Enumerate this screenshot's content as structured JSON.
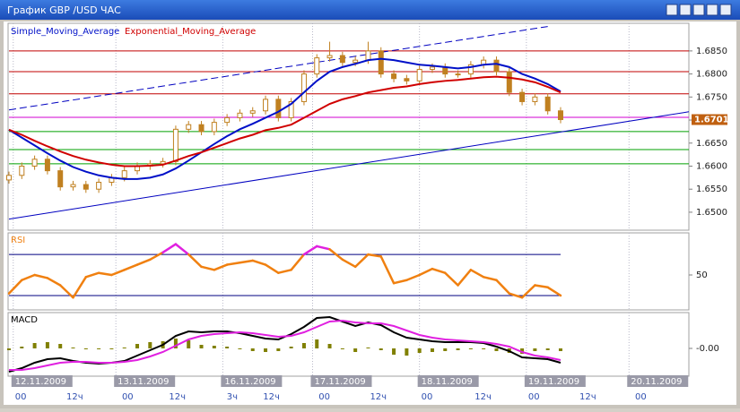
{
  "window": {
    "title": "График GBP /USD  ЧАС"
  },
  "time_axis": {
    "xlim": [
      0,
      159
    ],
    "dates": [
      {
        "value": 1,
        "label": "12.11.2009"
      },
      {
        "value": 25,
        "label": "13.11.2009"
      },
      {
        "value": 50,
        "label": "16.11.2009"
      },
      {
        "value": 71,
        "label": "17.11.2009"
      },
      {
        "value": 96,
        "label": "18.11.2009"
      },
      {
        "value": 121,
        "label": "19.11.2009"
      },
      {
        "value": 145,
        "label": "20.11.2009"
      }
    ],
    "hours": [
      {
        "value": 1,
        "label": "00"
      },
      {
        "value": 13,
        "label": "12ч"
      },
      {
        "value": 26,
        "label": "00"
      },
      {
        "value": 37,
        "label": "12ч"
      },
      {
        "value": 50.5,
        "label": "3ч"
      },
      {
        "value": 59,
        "label": "12ч"
      },
      {
        "value": 72,
        "label": "00"
      },
      {
        "value": 84,
        "label": "12ч"
      },
      {
        "value": 96,
        "label": "00"
      },
      {
        "value": 108.5,
        "label": "12ч"
      },
      {
        "value": 121,
        "label": "00"
      },
      {
        "value": 133,
        "label": "12ч"
      },
      {
        "value": 146,
        "label": "00"
      }
    ]
  },
  "chart_data": [
    {
      "type": "candlestick",
      "x": [
        0,
        3,
        6,
        9,
        12,
        15,
        18,
        21,
        24,
        27,
        30,
        33,
        36,
        39,
        42,
        45,
        48,
        51,
        54,
        57,
        60,
        63,
        66,
        69,
        72,
        75,
        78,
        81,
        84,
        87,
        90,
        93,
        96,
        99,
        102,
        105,
        108,
        111,
        114,
        117,
        120,
        123,
        126,
        129
      ],
      "candle_color": "#c08020",
      "last_color": "#c06010",
      "ohlc": {
        "open": [
          1.657,
          1.658,
          1.66,
          1.6615,
          1.659,
          1.6555,
          1.656,
          1.655,
          1.6565,
          1.6575,
          1.659,
          1.66,
          1.6605,
          1.661,
          1.668,
          1.669,
          1.6675,
          1.6695,
          1.6705,
          1.6715,
          1.672,
          1.6745,
          1.6705,
          1.674,
          1.68,
          1.6835,
          1.684,
          1.6825,
          1.683,
          1.685,
          1.68,
          1.679,
          1.6785,
          1.681,
          1.6815,
          1.68,
          1.68,
          1.682,
          1.683,
          1.6805,
          1.676,
          1.674,
          1.675,
          1.672
        ],
        "high": [
          1.6588,
          1.6608,
          1.6623,
          1.6623,
          1.6598,
          1.6568,
          1.6568,
          1.6573,
          1.6583,
          1.6598,
          1.6608,
          1.6613,
          1.6618,
          1.6688,
          1.6698,
          1.6698,
          1.6703,
          1.6713,
          1.6723,
          1.6728,
          1.6753,
          1.6753,
          1.6748,
          1.6808,
          1.6843,
          1.687,
          1.6848,
          1.6838,
          1.687,
          1.6858,
          1.6808,
          1.6798,
          1.6818,
          1.6823,
          1.6823,
          1.6808,
          1.6828,
          1.6838,
          1.6838,
          1.6813,
          1.6768,
          1.6758,
          1.6758,
          1.6728
        ],
        "low": [
          1.6562,
          1.6572,
          1.6592,
          1.6582,
          1.6547,
          1.6547,
          1.6542,
          1.6542,
          1.6557,
          1.6567,
          1.6582,
          1.6592,
          1.6597,
          1.6602,
          1.6672,
          1.6667,
          1.6667,
          1.6687,
          1.6697,
          1.6707,
          1.6712,
          1.6697,
          1.6697,
          1.6732,
          1.6792,
          1.6827,
          1.6817,
          1.6817,
          1.6822,
          1.6792,
          1.6782,
          1.6777,
          1.6777,
          1.6802,
          1.6792,
          1.6792,
          1.6792,
          1.6812,
          1.6797,
          1.6752,
          1.6732,
          1.6732,
          1.6712,
          1.6693
        ],
        "close": [
          1.658,
          1.66,
          1.6615,
          1.659,
          1.6555,
          1.656,
          1.655,
          1.6565,
          1.6575,
          1.659,
          1.66,
          1.6605,
          1.661,
          1.668,
          1.669,
          1.6675,
          1.6695,
          1.6705,
          1.6715,
          1.672,
          1.6745,
          1.6705,
          1.674,
          1.68,
          1.6835,
          1.684,
          1.6825,
          1.683,
          1.685,
          1.68,
          1.679,
          1.6785,
          1.681,
          1.6815,
          1.68,
          1.68,
          1.682,
          1.683,
          1.6805,
          1.676,
          1.674,
          1.675,
          1.672,
          1.6701
        ]
      },
      "series": [
        {
          "name": "Simple_Moving_Average",
          "color": "#0010c8",
          "values": [
            1.6679,
            1.6662,
            1.6645,
            1.6628,
            1.6612,
            1.6598,
            1.6588,
            1.658,
            1.6575,
            1.6572,
            1.6572,
            1.6575,
            1.6582,
            1.6595,
            1.6612,
            1.663,
            1.6648,
            1.6665,
            1.668,
            1.6692,
            1.6705,
            1.6718,
            1.6735,
            1.676,
            1.6785,
            1.6805,
            1.6815,
            1.6822,
            1.683,
            1.6833,
            1.683,
            1.6825,
            1.682,
            1.6818,
            1.6815,
            1.6812,
            1.6815,
            1.682,
            1.6822,
            1.6815,
            1.68,
            1.679,
            1.6778,
            1.6762
          ]
        },
        {
          "name": "Exponential_Moving_Average",
          "color": "#d00000",
          "values": [
            1.6679,
            1.6668,
            1.6655,
            1.6643,
            1.6632,
            1.6622,
            1.6614,
            1.6608,
            1.6603,
            1.66,
            1.66,
            1.6601,
            1.6603,
            1.6612,
            1.6622,
            1.663,
            1.664,
            1.665,
            1.666,
            1.6668,
            1.6678,
            1.6683,
            1.669,
            1.6705,
            1.672,
            1.6735,
            1.6745,
            1.6752,
            1.676,
            1.6765,
            1.677,
            1.6773,
            1.6778,
            1.6782,
            1.6785,
            1.6787,
            1.679,
            1.6793,
            1.6794,
            1.6792,
            1.6788,
            1.6782,
            1.6772,
            1.676
          ]
        }
      ],
      "levels": [
        {
          "value": 1.685,
          "color": "#c00000"
        },
        {
          "value": 1.6805,
          "color": "#c00000"
        },
        {
          "value": 1.6757,
          "color": "#c00000"
        },
        {
          "value": 1.6706,
          "color": "#d000d0"
        },
        {
          "value": 1.6675,
          "color": "#00a000"
        },
        {
          "value": 1.6636,
          "color": "#00a000"
        },
        {
          "value": 1.6605,
          "color": "#00a000"
        }
      ],
      "trendlines": [
        {
          "x": [
            0,
            126
          ],
          "values": [
            1.6722,
            1.6903
          ],
          "color": "#0000c0",
          "dashed": true
        },
        {
          "x": [
            0,
            159
          ],
          "values": [
            1.6485,
            1.6718
          ],
          "color": "#0000c0",
          "dashed": false
        }
      ],
      "ylim": [
        1.6461,
        1.691
      ],
      "yticks": [
        {
          "value": 1.65,
          "label": "1.6500"
        },
        {
          "value": 1.655,
          "label": "1.6550"
        },
        {
          "value": 1.66,
          "label": "1.6600"
        },
        {
          "value": 1.665,
          "label": "1.6650"
        },
        {
          "value": 1.67,
          "label": "1.6700"
        },
        {
          "value": 1.675,
          "label": "1.6750"
        },
        {
          "value": 1.68,
          "label": "1.6800"
        },
        {
          "value": 1.685,
          "label": "1.6850"
        }
      ]
    },
    {
      "type": "rsi",
      "title": "RSI",
      "color": "#f08010",
      "over_color": "#e020e0",
      "under_color": "#20c020",
      "levels": [
        70,
        30
      ],
      "level_color": "#000080",
      "values": [
        32,
        45,
        50,
        47,
        40,
        28,
        48,
        52,
        50,
        55,
        60,
        65,
        72,
        80,
        70,
        58,
        55,
        60,
        62,
        64,
        60,
        52,
        55,
        70,
        78,
        75,
        65,
        58,
        70,
        68,
        42,
        45,
        50,
        56,
        52,
        40,
        55,
        48,
        45,
        32,
        28,
        40,
        38,
        30
      ],
      "ylim": [
        16,
        91
      ],
      "yticks": [
        50
      ]
    },
    {
      "type": "macd",
      "title": "MACD",
      "series": [
        {
          "color": "#000000",
          "values": [
            -0.0026,
            -0.0022,
            -0.0016,
            -0.0012,
            -0.0011,
            -0.0014,
            -0.0016,
            -0.0017,
            -0.0016,
            -0.0014,
            -0.0008,
            -0.0002,
            0.0004,
            0.0014,
            0.0019,
            0.0018,
            0.0019,
            0.0019,
            0.0017,
            0.0014,
            0.0011,
            0.001,
            0.0016,
            0.0024,
            0.0034,
            0.0035,
            0.003,
            0.0025,
            0.0029,
            0.0026,
            0.0018,
            0.0012,
            0.001,
            0.0008,
            0.0007,
            0.0007,
            0.0007,
            0.0006,
            0.0002,
            -0.0003,
            -0.001,
            -0.0011,
            -0.0012,
            -0.0016
          ]
        },
        {
          "color": "#e020e0",
          "values": [
            -0.0024,
            -0.0024,
            -0.0022,
            -0.0019,
            -0.0016,
            -0.0015,
            -0.0015,
            -0.0016,
            -0.0016,
            -0.0015,
            -0.0013,
            -0.0009,
            -0.0004,
            0.0003,
            0.001,
            0.0014,
            0.0016,
            0.0017,
            0.0018,
            0.0017,
            0.0015,
            0.0013,
            0.0014,
            0.0018,
            0.0024,
            0.003,
            0.0031,
            0.0029,
            0.0028,
            0.0028,
            0.0025,
            0.002,
            0.0015,
            0.0012,
            0.001,
            0.0009,
            0.0008,
            0.0007,
            0.0005,
            0.0002,
            -0.0004,
            -0.0008,
            -0.001,
            -0.0013
          ]
        }
      ],
      "histogram": {
        "color": "#808000",
        "values": [
          -0.0002,
          0.0002,
          0.0006,
          0.0007,
          0.0005,
          0.0001,
          -0.0001,
          -0.0001,
          0,
          0.0001,
          0.0005,
          0.0007,
          0.0008,
          0.0011,
          0.0009,
          0.0004,
          0.0003,
          0.0002,
          -0.0001,
          -0.0003,
          -0.0004,
          -0.0003,
          0.0002,
          0.0006,
          0.001,
          0.0005,
          -0.0001,
          -0.0004,
          0.0001,
          -0.0002,
          -0.0007,
          -0.0008,
          -0.0005,
          -0.0004,
          -0.0003,
          -0.0002,
          -0.0001,
          -0.0001,
          -0.0003,
          -0.0005,
          -0.0006,
          -0.0003,
          -0.0002,
          -0.0003
        ]
      },
      "ylim": [
        -0.0031,
        0.004
      ],
      "yticks": [
        {
          "value": 0,
          "label": "-0.00"
        }
      ]
    }
  ]
}
